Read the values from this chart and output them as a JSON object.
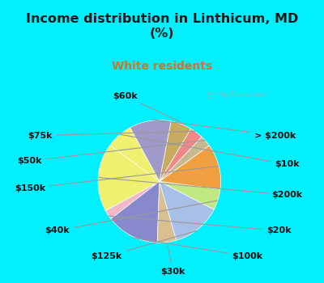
{
  "title": "Income distribution in Linthicum, MD\n(%)",
  "subtitle": "White residents",
  "title_color": "#1a1a1a",
  "subtitle_color": "#c87828",
  "bg_cyan": "#00f0ff",
  "bg_chart": "#dff0e8",
  "labels": [
    "> $200k",
    "$10k",
    "$200k",
    "$20k",
    "$100k",
    "$30k",
    "$125k",
    "$40k",
    "$150k",
    "$50k",
    "$75k",
    "$60k"
  ],
  "values": [
    11.0,
    7.0,
    18.0,
    2.5,
    14.0,
    5.0,
    13.0,
    5.5,
    12.0,
    3.0,
    3.5,
    5.5
  ],
  "colors": [
    "#a09ac8",
    "#f0f070",
    "#f0f070",
    "#f0b8c8",
    "#8888cc",
    "#d8c090",
    "#a8c0e8",
    "#c0e880",
    "#f0a040",
    "#c8b890",
    "#f08888",
    "#c8aa60"
  ],
  "startangle": 79,
  "label_fontsize": 8
}
